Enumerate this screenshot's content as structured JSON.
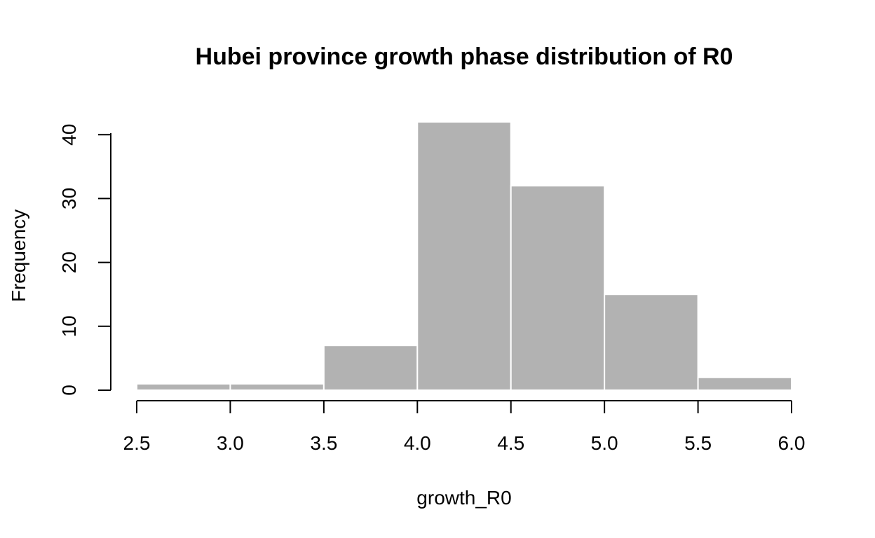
{
  "chart_data": {
    "type": "bar",
    "title": "Hubei province growth phase distribution of R0",
    "xlabel": "growth_R0",
    "ylabel": "Frequency",
    "bins": [
      {
        "from": 2.5,
        "to": 3.0,
        "count": 1
      },
      {
        "from": 3.0,
        "to": 3.5,
        "count": 1
      },
      {
        "from": 3.5,
        "to": 4.0,
        "count": 7
      },
      {
        "from": 4.0,
        "to": 4.5,
        "count": 42
      },
      {
        "from": 4.5,
        "to": 5.0,
        "count": 32
      },
      {
        "from": 5.0,
        "to": 5.5,
        "count": 15
      },
      {
        "from": 5.5,
        "to": 6.0,
        "count": 2
      }
    ],
    "xlim": [
      2.5,
      6.0
    ],
    "ylim": [
      0,
      42
    ],
    "x_ticks": [
      "2.5",
      "3.0",
      "3.5",
      "4.0",
      "4.5",
      "5.0",
      "5.5",
      "6.0"
    ],
    "y_ticks": [
      "0",
      "10",
      "20",
      "30",
      "40"
    ],
    "grid": false,
    "legend": "none",
    "bar_color": "#b2b2b2",
    "bar_border_color": "#ffffff"
  }
}
